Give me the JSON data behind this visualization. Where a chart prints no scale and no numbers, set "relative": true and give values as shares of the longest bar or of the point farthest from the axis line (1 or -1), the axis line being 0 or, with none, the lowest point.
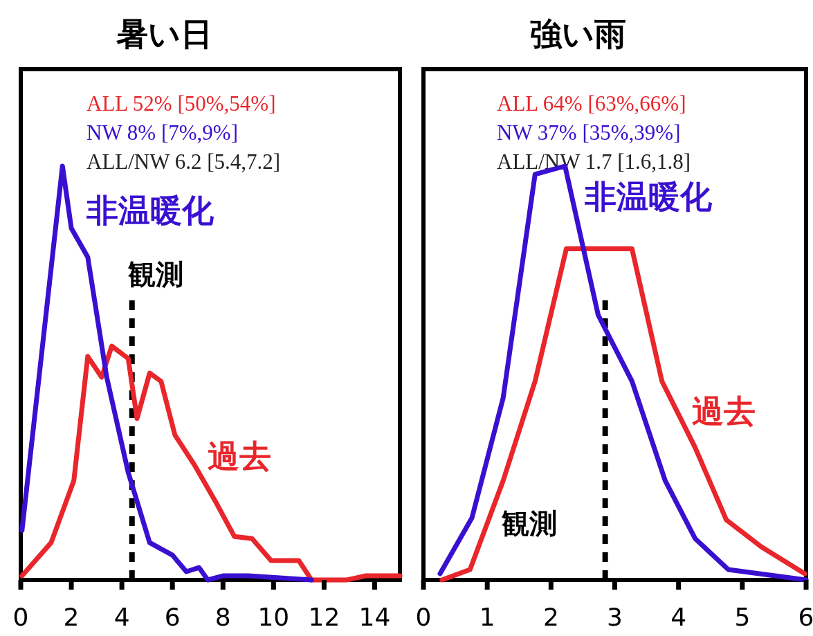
{
  "chart_data": [
    {
      "type": "line",
      "title": "暑い日",
      "relative": true,
      "xlim": [
        0,
        15
      ],
      "xticks": [
        0,
        2,
        4,
        6,
        8,
        10,
        12,
        14
      ],
      "annotations": [
        "ALL 52% [50%,54%]",
        "NW 8% [7%,9%]",
        "ALL/NW 6.2 [5.4,7.2]"
      ],
      "ref_lines": [
        {
          "axis": "x",
          "value": 4.4,
          "label": "観測",
          "line_style": "dashed",
          "color": "#000000"
        }
      ],
      "series": [
        {
          "name": "過去",
          "color": "#e8262b",
          "x": [
            0.05,
            1.2,
            2.1,
            2.65,
            3.2,
            3.6,
            4.25,
            4.6,
            5.1,
            5.55,
            6.1,
            6.85,
            7.7,
            8.45,
            9.15,
            9.9,
            11.0,
            11.5,
            12.9,
            13.65,
            14.65,
            15
          ],
          "values": [
            0.01,
            0.09,
            0.24,
            0.54,
            0.49,
            0.565,
            0.535,
            0.39,
            0.5,
            0.48,
            0.35,
            0.28,
            0.19,
            0.105,
            0.1,
            0.047,
            0.047,
            0,
            0,
            0.01,
            0.01,
            0.01
          ]
        },
        {
          "name": "非温暖化",
          "color": "#3a10d0",
          "x": [
            0.05,
            1.65,
            2.0,
            2.65,
            3.4,
            4.25,
            5.1,
            6.0,
            6.55,
            7.05,
            7.4,
            8.0,
            9.0,
            11.5
          ],
          "values": [
            0.12,
            1.0,
            0.85,
            0.78,
            0.49,
            0.26,
            0.09,
            0.06,
            0.02,
            0.03,
            0,
            0.01,
            0.01,
            0
          ]
        }
      ]
    },
    {
      "type": "line",
      "title": "強い雨",
      "relative": true,
      "xlim": [
        0,
        6
      ],
      "xticks": [
        0,
        1,
        2,
        3,
        4,
        5,
        6
      ],
      "annotations": [
        "ALL 64% [63%,66%]",
        "NW 37% [35%,39%]",
        "ALL/NW 1.7 [1.6,1.8]"
      ],
      "ref_lines": [
        {
          "axis": "x",
          "value": 2.85,
          "label": "観測",
          "line_style": "dashed",
          "color": "#000000"
        }
      ],
      "series": [
        {
          "name": "過去",
          "color": "#e8262b",
          "x": [
            0.29,
            0.73,
            1.25,
            1.75,
            2.24,
            3.27,
            3.74,
            4.26,
            4.75,
            5.3,
            5.98
          ],
          "values": [
            0,
            0.025,
            0.24,
            0.48,
            0.8,
            0.8,
            0.48,
            0.32,
            0.145,
            0.08,
            0.015
          ]
        },
        {
          "name": "非温暖化",
          "color": "#3a10d0",
          "x": [
            0.26,
            0.76,
            1.25,
            1.75,
            2.22,
            2.74,
            3.27,
            3.79,
            4.26,
            4.78,
            6.0
          ],
          "values": [
            0.015,
            0.15,
            0.44,
            0.98,
            1.0,
            0.64,
            0.48,
            0.24,
            0.1,
            0.025,
            0
          ]
        }
      ]
    }
  ]
}
